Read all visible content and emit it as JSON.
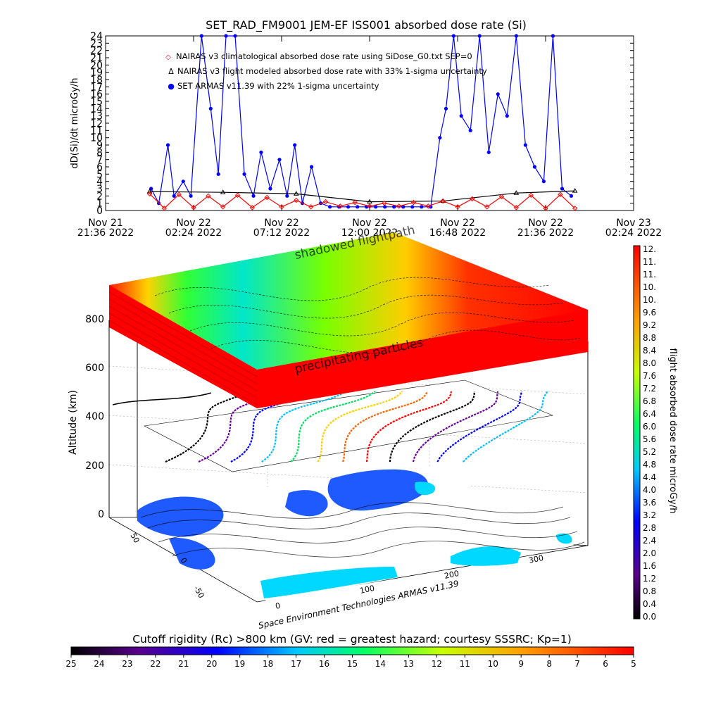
{
  "top_chart": {
    "title": "SET_RAD_FM9001  JEM-EF ISS001 absorbed dose rate (Si)",
    "ylabel": "dD(Si)/dt microGy/h",
    "yticks": [
      "0",
      "1",
      "2",
      "3",
      "4",
      "5",
      "6",
      "7",
      "8",
      "9",
      "10",
      "11",
      "12",
      "13",
      "14",
      "15",
      "16",
      "17",
      "18",
      "19",
      "20",
      "21",
      "22",
      "23",
      "24"
    ],
    "xticks": [
      {
        "l1": "Nov 21",
        "l2": "21:36 2022"
      },
      {
        "l1": "Nov 22",
        "l2": "02:24 2022"
      },
      {
        "l1": "Nov 22",
        "l2": "07:12 2022"
      },
      {
        "l1": "Nov 22",
        "l2": "12:00 2022"
      },
      {
        "l1": "Nov 22",
        "l2": "16:48 2022"
      },
      {
        "l1": "Nov 22",
        "l2": "21:36 2022"
      },
      {
        "l1": "Nov 23",
        "l2": "02:24 2022"
      }
    ],
    "legend": [
      {
        "symbol": "◇",
        "color": "#ff0000",
        "text": "NAIRAS v3 climatological absorbed dose rate using SiDose_G0.txt SEP=0"
      },
      {
        "symbol": "Δ",
        "color": "#000000",
        "text": "NAIRAS v3 flight modeled absorbed dose rate with 33% 1-sigma uncertainty"
      },
      {
        "symbol": "●",
        "color": "#0000ff",
        "text": "SET ARMAS v11.39 with 22% 1-sigma uncertainty"
      }
    ]
  },
  "chart_data": [
    {
      "type": "line",
      "title": "SET_RAD_FM9001  JEM-EF ISS001 absorbed dose rate (Si)",
      "ylabel": "dD(Si)/dt microGy/h",
      "xlabel": "",
      "ylim": [
        0,
        24
      ],
      "xlim": [
        "2022-11-21 21:36",
        "2022-11-23 02:24"
      ],
      "series": [
        {
          "name": "NAIRAS v3 climatological absorbed dose rate using SiDose_G0.txt SEP=0",
          "color": "#ff0000",
          "x": [
            "2022-11-22 00:00",
            "2022-11-22 00:48",
            "2022-11-22 01:36",
            "2022-11-22 02:24",
            "2022-11-22 03:12",
            "2022-11-22 04:00",
            "2022-11-22 04:48",
            "2022-11-22 05:36",
            "2022-11-22 06:24",
            "2022-11-22 07:12",
            "2022-11-22 08:00",
            "2022-11-22 08:48",
            "2022-11-22 09:36",
            "2022-11-22 10:24",
            "2022-11-22 11:12",
            "2022-11-22 12:00",
            "2022-11-22 12:48",
            "2022-11-22 13:36",
            "2022-11-22 14:24",
            "2022-11-22 15:12",
            "2022-11-22 16:00",
            "2022-11-22 16:48",
            "2022-11-22 17:36",
            "2022-11-22 18:24",
            "2022-11-22 19:12",
            "2022-11-22 20:00",
            "2022-11-22 20:48",
            "2022-11-22 21:36",
            "2022-11-22 22:24",
            "2022-11-22 23:12"
          ],
          "y": [
            2.3,
            0.3,
            2.2,
            0.4,
            2.0,
            0.5,
            2.1,
            0.4,
            1.8,
            0.5,
            1.4,
            0.5,
            1.2,
            0.6,
            1.1,
            0.6,
            1.0,
            0.6,
            1.1,
            0.6,
            1.3,
            0.5,
            1.6,
            0.5,
            1.9,
            0.4,
            2.1,
            0.3,
            2.2,
            0.3
          ]
        },
        {
          "name": "NAIRAS v3 flight modeled absorbed dose rate with 33% 1-sigma uncertainty",
          "color": "#000000",
          "x": [
            "2022-11-22 00:00",
            "2022-11-22 04:00",
            "2022-11-22 08:00",
            "2022-11-22 12:00",
            "2022-11-22 16:00",
            "2022-11-22 20:00",
            "2022-11-22 23:12"
          ],
          "y": [
            2.6,
            2.5,
            2.3,
            1.2,
            1.3,
            2.4,
            2.7
          ]
        },
        {
          "name": "SET ARMAS v11.39 with 22% 1-sigma uncertainty",
          "color": "#0000ff",
          "x": [
            "2022-11-22 00:05",
            "2022-11-22 00:30",
            "2022-11-22 01:00",
            "2022-11-22 01:20",
            "2022-11-22 01:50",
            "2022-11-22 02:15",
            "2022-11-22 02:50",
            "2022-11-22 03:20",
            "2022-11-22 03:45",
            "2022-11-22 04:10",
            "2022-11-22 04:40",
            "2022-11-22 05:10",
            "2022-11-22 05:40",
            "2022-11-22 06:05",
            "2022-11-22 06:35",
            "2022-11-22 07:05",
            "2022-11-22 07:30",
            "2022-11-22 07:55",
            "2022-11-22 08:20",
            "2022-11-22 08:50",
            "2022-11-22 09:20",
            "2022-11-22 09:50",
            "2022-11-22 10:20",
            "2022-11-22 10:50",
            "2022-11-22 11:20",
            "2022-11-22 11:50",
            "2022-11-22 12:20",
            "2022-11-22 12:50",
            "2022-11-22 13:20",
            "2022-11-22 13:50",
            "2022-11-22 14:20",
            "2022-11-22 14:50",
            "2022-11-22 15:20",
            "2022-11-22 15:50",
            "2022-11-22 16:10",
            "2022-11-22 16:35",
            "2022-11-22 17:00",
            "2022-11-22 17:30",
            "2022-11-22 18:00",
            "2022-11-22 18:30",
            "2022-11-22 19:00",
            "2022-11-22 19:30",
            "2022-11-22 20:00",
            "2022-11-22 20:30",
            "2022-11-22 21:00",
            "2022-11-22 21:30",
            "2022-11-22 22:00",
            "2022-11-22 22:30",
            "2022-11-22 23:00"
          ],
          "y": [
            3,
            1,
            9,
            2,
            4,
            2,
            24,
            14,
            5,
            24,
            24,
            5,
            2,
            8,
            3,
            7,
            2,
            9,
            1,
            6,
            1,
            0.5,
            0.5,
            0.5,
            0.5,
            0.5,
            0.5,
            0.5,
            0.5,
            0.5,
            0.5,
            0.5,
            0.5,
            10,
            14,
            24,
            13,
            11,
            24,
            8,
            16,
            13,
            24,
            9,
            6,
            4,
            24,
            3,
            2
          ]
        }
      ]
    },
    {
      "type": "heatmap",
      "title": "",
      "axes": {
        "z_label": "Altitude (km)",
        "z_ticks": [
          "0",
          "200",
          "400",
          "600",
          "800"
        ],
        "lon_ticks": [
          "0",
          "100",
          "200",
          "300"
        ],
        "lat_ticks": [
          "-50",
          "0",
          "50"
        ]
      },
      "layers": [
        "map",
        "flight path",
        "precipitating particles"
      ]
    }
  ],
  "cube": {
    "zlabel": "Altitude (km)",
    "zticks": [
      "0",
      "200",
      "400",
      "600",
      "800"
    ],
    "lon_ticks": [
      "0",
      "100",
      "200",
      "300"
    ],
    "lat_ticks": [
      "-50",
      "0",
      "50"
    ],
    "top_label": "shadowed flightpath",
    "layer_label": "precipitating particles",
    "credit": "Space Environment Technologies ARMAS v11.39"
  },
  "right_bar": {
    "label": "flight absorbed dose rate microGy/h",
    "ticks": [
      "12.",
      "11.",
      "11.",
      "10.",
      "10.",
      "9.6",
      "9.2",
      "8.8",
      "8.4",
      "8.0",
      "7.6",
      "7.2",
      "6.8",
      "6.4",
      "6.0",
      "5.6",
      "5.2",
      "4.8",
      "4.4",
      "4.0",
      "3.6",
      "3.2",
      "2.8",
      "2.4",
      "2.0",
      "1.6",
      "1.2",
      "0.8",
      "0.4",
      "0.0"
    ]
  },
  "bottom_bar": {
    "title": "Cutoff rigidity (Rc) >800 km (GV: red = greatest hazard; courtesy SSSRC; Kp=1)",
    "ticks": [
      "25",
      "24",
      "23",
      "22",
      "21",
      "20",
      "19",
      "18",
      "17",
      "16",
      "15",
      "14",
      "13",
      "12",
      "11",
      "10",
      "9",
      "8",
      "7",
      "6",
      "5"
    ]
  }
}
